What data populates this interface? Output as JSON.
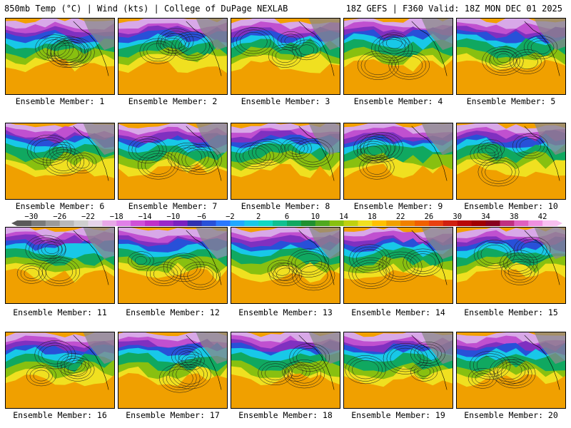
{
  "header": {
    "title_left": "850mb Temp (°C) | Wind (kts) | College of DuPage NEXLAB",
    "title_right": "18Z GEFS | F360 Valid: 18Z MON DEC 01 2025"
  },
  "members": [
    {
      "label": "Ensemble Member: 1"
    },
    {
      "label": "Ensemble Member: 2"
    },
    {
      "label": "Ensemble Member: 3"
    },
    {
      "label": "Ensemble Member: 4"
    },
    {
      "label": "Ensemble Member: 5"
    },
    {
      "label": "Ensemble Member: 6"
    },
    {
      "label": "Ensemble Member: 7"
    },
    {
      "label": "Ensemble Member: 8"
    },
    {
      "label": "Ensemble Member: 9"
    },
    {
      "label": "Ensemble Member: 10"
    },
    {
      "label": "Ensemble Member: 11"
    },
    {
      "label": "Ensemble Member: 12"
    },
    {
      "label": "Ensemble Member: 13"
    },
    {
      "label": "Ensemble Member: 14"
    },
    {
      "label": "Ensemble Member: 15"
    },
    {
      "label": "Ensemble Member: 16"
    },
    {
      "label": "Ensemble Member: 17"
    },
    {
      "label": "Ensemble Member: 18"
    },
    {
      "label": "Ensemble Member: 19"
    },
    {
      "label": "Ensemble Member: 20"
    }
  ],
  "colorbar": {
    "unit": "°C",
    "ticks": [
      "−30",
      "−26",
      "−22",
      "−18",
      "−14",
      "−10",
      "−6",
      "−2",
      "2",
      "6",
      "10",
      "14",
      "18",
      "22",
      "26",
      "30",
      "34",
      "38",
      "42"
    ],
    "min": -32,
    "max": 44,
    "step": 2,
    "colors": [
      "#5a5a5a",
      "#7a7a7a",
      "#9a9a9a",
      "#b8b8b8",
      "#cfcfcf",
      "#e6d3ea",
      "#e8a8e8",
      "#e080e8",
      "#d050d8",
      "#c030c8",
      "#9a28c8",
      "#7a20c0",
      "#3030b0",
      "#2850d8",
      "#2a78ff",
      "#20a8ff",
      "#18c8e8",
      "#10d8c0",
      "#10c090",
      "#10a860",
      "#209030",
      "#50a820",
      "#88c010",
      "#c0d010",
      "#f0e020",
      "#ffc000",
      "#f0a000",
      "#f08000",
      "#f06000",
      "#e84010",
      "#d02010",
      "#b80808",
      "#a00000",
      "#880020",
      "#c03080",
      "#e060c0",
      "#f090e0",
      "#f8c0f0"
    ]
  }
}
